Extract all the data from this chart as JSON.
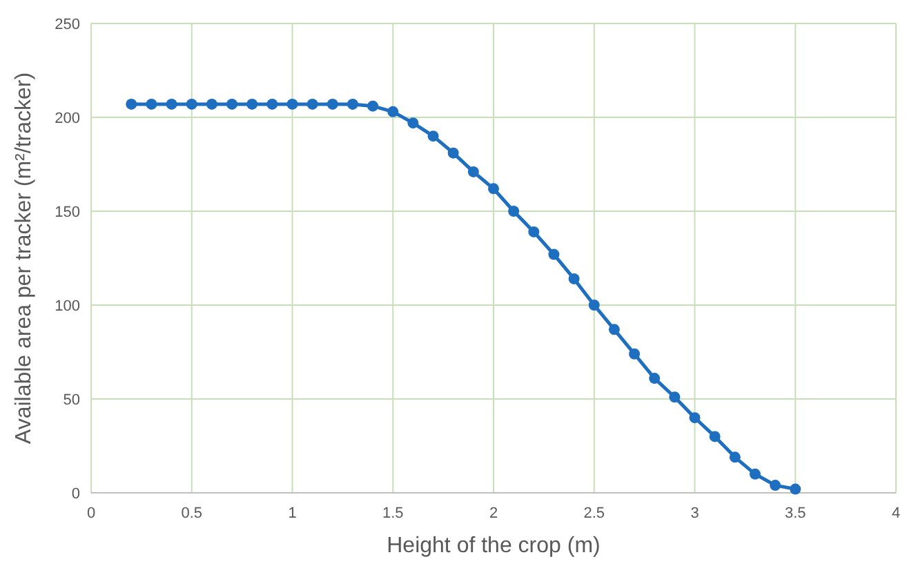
{
  "chart_data": {
    "type": "line",
    "xlabel": "Height of the crop (m)",
    "ylabel": "Available area per tracker (m²/tracker)",
    "x": [
      0.2,
      0.3,
      0.4,
      0.5,
      0.6,
      0.7,
      0.8,
      0.9,
      1.0,
      1.1,
      1.2,
      1.3,
      1.4,
      1.5,
      1.6,
      1.7,
      1.8,
      1.9,
      2.0,
      2.1,
      2.2,
      2.3,
      2.4,
      2.5,
      2.6,
      2.7,
      2.8,
      2.9,
      3.0,
      3.1,
      3.2,
      3.3,
      3.4,
      3.5
    ],
    "series": [
      {
        "color": "#1f6fc0",
        "values": [
          207,
          207,
          207,
          207,
          207,
          207,
          207,
          207,
          207,
          207,
          207,
          207,
          206,
          203,
          197,
          190,
          181,
          171,
          162,
          150,
          139,
          127,
          114,
          100,
          87,
          74,
          61,
          51,
          40,
          30,
          19,
          10,
          4,
          2
        ]
      }
    ],
    "xlim": [
      0,
      4
    ],
    "xticks": [
      0,
      0.5,
      1,
      1.5,
      2,
      2.5,
      3,
      3.5,
      4
    ],
    "ylim": [
      0,
      250
    ],
    "yticks": [
      0,
      50,
      100,
      150,
      200,
      250
    ],
    "grid": true,
    "marker": "circle",
    "line_style": "solid"
  }
}
